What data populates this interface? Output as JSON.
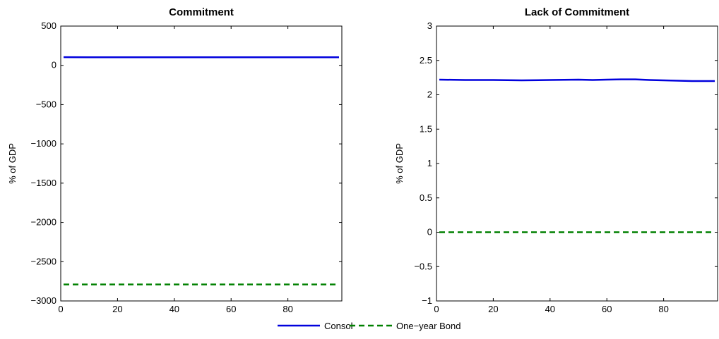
{
  "chart_data": [
    {
      "type": "line",
      "title": "Commitment",
      "xlabel": "",
      "ylabel": "% of GDP",
      "xlim": [
        0,
        99
      ],
      "ylim": [
        -3000,
        500
      ],
      "xticks": [
        0,
        20,
        40,
        60,
        80
      ],
      "yticks": [
        -3000,
        -2500,
        -2000,
        -1500,
        -1000,
        -500,
        0,
        500
      ],
      "yticklabels": [
        "−3000",
        "−2500",
        "−2000",
        "−1500",
        "−1000",
        "−500",
        "0",
        "500"
      ],
      "series": [
        {
          "name": "Consol",
          "color": "#0000dd",
          "dash": "solid",
          "x": [
            1,
            10,
            20,
            30,
            40,
            50,
            60,
            70,
            80,
            90,
            98
          ],
          "y": [
            104,
            103,
            103,
            102,
            103,
            103,
            102,
            103,
            103,
            103,
            103
          ]
        },
        {
          "name": "One−year Bond",
          "color": "#008000",
          "dash": "dashed",
          "x": [
            1,
            98
          ],
          "y": [
            -2790,
            -2790
          ]
        }
      ]
    },
    {
      "type": "line",
      "title": "Lack of Commitment",
      "xlabel": "",
      "ylabel": "% of GDP",
      "xlim": [
        0,
        99
      ],
      "ylim": [
        -1,
        3
      ],
      "xticks": [
        0,
        20,
        40,
        60,
        80
      ],
      "yticks": [
        -1,
        -0.5,
        0,
        0.5,
        1,
        1.5,
        2,
        2.5,
        3
      ],
      "yticklabels": [
        "−1",
        "−0.5",
        "0",
        "0.5",
        "1",
        "1.5",
        "2",
        "2.5",
        "3"
      ],
      "series": [
        {
          "name": "Consol",
          "color": "#0000dd",
          "dash": "solid",
          "x": [
            1,
            10,
            20,
            30,
            40,
            50,
            55,
            60,
            65,
            70,
            75,
            80,
            90,
            98
          ],
          "y": [
            2.22,
            2.215,
            2.215,
            2.21,
            2.215,
            2.22,
            2.215,
            2.22,
            2.225,
            2.225,
            2.215,
            2.21,
            2.2,
            2.2
          ]
        },
        {
          "name": "One−year Bond",
          "color": "#008000",
          "dash": "dashed",
          "x": [
            1,
            98
          ],
          "y": [
            0,
            0
          ]
        }
      ]
    }
  ],
  "legend": {
    "placement": "bottom-center",
    "entries": [
      {
        "label": "Consol",
        "color": "#0000dd",
        "dash": "solid"
      },
      {
        "label": "One−year Bond",
        "color": "#008000",
        "dash": "dashed"
      }
    ]
  }
}
